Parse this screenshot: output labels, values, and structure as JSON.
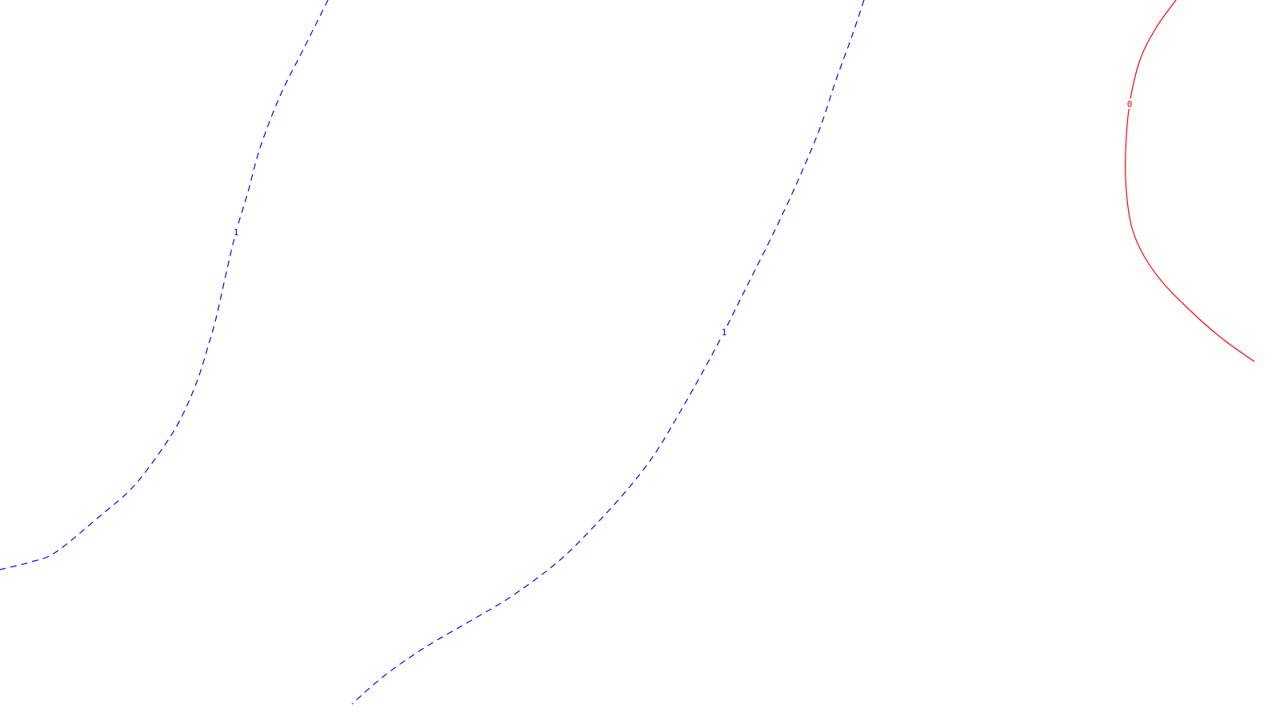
{
  "chart_data": {
    "type": "contour",
    "title": "",
    "xlabel": "",
    "ylabel": "",
    "grid": false,
    "legend": "none",
    "contours": [
      {
        "level_label": "1",
        "style": "dashed",
        "color": "#0000ff",
        "label_index": 5,
        "points": [
          [
            410,
            0
          ],
          [
            380,
            60
          ],
          [
            350,
            120
          ],
          [
            325,
            185
          ],
          [
            310,
            240
          ],
          [
            295,
            290
          ],
          [
            283,
            340
          ],
          [
            270,
            398
          ],
          [
            258,
            440
          ],
          [
            245,
            480
          ],
          [
            225,
            525
          ],
          [
            200,
            565
          ],
          [
            165,
            610
          ],
          [
            125,
            645
          ],
          [
            70,
            690
          ],
          [
            40,
            702
          ],
          [
            0,
            712
          ]
        ]
      },
      {
        "level_label": "1",
        "style": "dashed",
        "color": "#0000ff",
        "label_index": 7,
        "points": [
          [
            1080,
            0
          ],
          [
            1065,
            45
          ],
          [
            1045,
            100
          ],
          [
            1025,
            160
          ],
          [
            1000,
            220
          ],
          [
            970,
            285
          ],
          [
            935,
            355
          ],
          [
            905,
            415
          ],
          [
            880,
            462
          ],
          [
            850,
            515
          ],
          [
            820,
            565
          ],
          [
            790,
            605
          ],
          [
            750,
            650
          ],
          [
            700,
            700
          ],
          [
            640,
            745
          ],
          [
            590,
            775
          ],
          [
            530,
            810
          ],
          [
            480,
            845
          ],
          [
            440,
            880
          ]
        ]
      },
      {
        "level_label": "0",
        "style": "solid",
        "color": "#ff0000",
        "label_index": 3,
        "points": [
          [
            1470,
            0
          ],
          [
            1445,
            35
          ],
          [
            1425,
            75
          ],
          [
            1412,
            130
          ],
          [
            1407,
            190
          ],
          [
            1408,
            240
          ],
          [
            1415,
            285
          ],
          [
            1430,
            320
          ],
          [
            1455,
            355
          ],
          [
            1495,
            395
          ],
          [
            1530,
            425
          ],
          [
            1568,
            452
          ]
        ]
      }
    ]
  }
}
